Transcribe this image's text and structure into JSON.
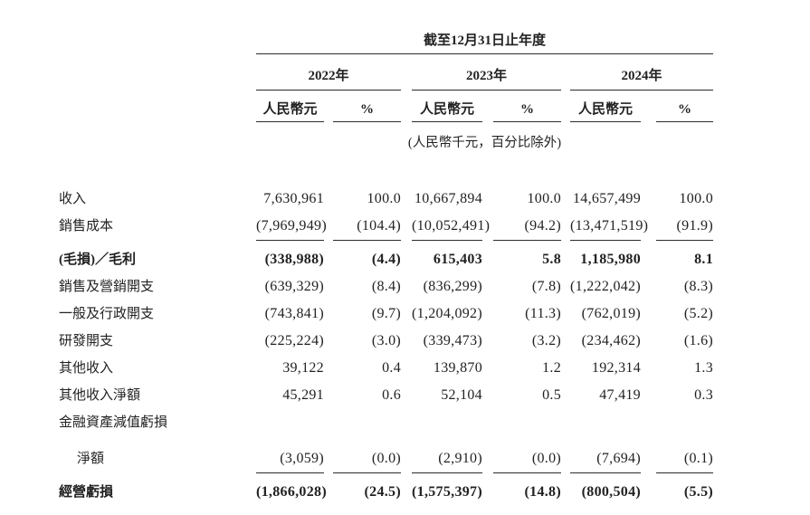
{
  "page": {
    "background_color": "#ffffff",
    "text_color": "#222222",
    "rule_color": "#2b2b2b"
  },
  "table": {
    "title": "截至12月31日止年度",
    "unit_note": "(人民幣千元，百分比除外)",
    "year_groups": [
      {
        "year": "2022年",
        "columns": [
          "人民幣元",
          "%"
        ]
      },
      {
        "year": "2023年",
        "columns": [
          "人民幣元",
          "%"
        ]
      },
      {
        "year": "2024年",
        "columns": [
          "人民幣元",
          "%"
        ]
      }
    ],
    "rows": [
      {
        "label": "收入",
        "bold": false,
        "indent": false,
        "rule_below": false,
        "values": [
          "7,630,961",
          "100.0",
          "10,667,894",
          "100.0",
          "14,657,499",
          "100.0"
        ]
      },
      {
        "label": "銷售成本",
        "bold": false,
        "indent": false,
        "rule_below": true,
        "values": [
          "(7,969,949)",
          "(104.4)",
          "(10,052,491)",
          "(94.2)",
          "(13,471,519)",
          "(91.9)"
        ]
      },
      {
        "label": "(毛損)／毛利",
        "bold": true,
        "indent": false,
        "rule_below": false,
        "values": [
          "(338,988)",
          "(4.4)",
          "615,403",
          "5.8",
          "1,185,980",
          "8.1"
        ]
      },
      {
        "label": "銷售及營銷開支",
        "bold": false,
        "indent": false,
        "rule_below": false,
        "values": [
          "(639,329)",
          "(8.4)",
          "(836,299)",
          "(7.8)",
          "(1,222,042)",
          "(8.3)"
        ]
      },
      {
        "label": "一般及行政開支",
        "bold": false,
        "indent": false,
        "rule_below": false,
        "values": [
          "(743,841)",
          "(9.7)",
          "(1,204,092)",
          "(11.3)",
          "(762,019)",
          "(5.2)"
        ]
      },
      {
        "label": "研發開支",
        "bold": false,
        "indent": false,
        "rule_below": false,
        "values": [
          "(225,224)",
          "(3.0)",
          "(339,473)",
          "(3.2)",
          "(234,462)",
          "(1.6)"
        ]
      },
      {
        "label": "其他收入",
        "bold": false,
        "indent": false,
        "rule_below": false,
        "values": [
          "39,122",
          "0.4",
          "139,870",
          "1.2",
          "192,314",
          "1.3"
        ]
      },
      {
        "label": "其他收入淨額",
        "bold": false,
        "indent": false,
        "rule_below": false,
        "values": [
          "45,291",
          "0.6",
          "52,104",
          "0.5",
          "47,419",
          "0.3"
        ]
      },
      {
        "label": "金融資產減值虧損",
        "bold": false,
        "indent": false,
        "rule_below": false,
        "values": [
          "",
          "",
          "",
          "",
          "",
          ""
        ]
      },
      {
        "label": "淨額",
        "bold": false,
        "indent": true,
        "rule_below": true,
        "values": [
          "(3,059)",
          "(0.0)",
          "(2,910)",
          "(0.0)",
          "(7,694)",
          "(0.1)"
        ]
      },
      {
        "label": "經營虧損",
        "bold": true,
        "indent": false,
        "rule_below": false,
        "values": [
          "(1,866,028)",
          "(24.5)",
          "(1,575,397)",
          "(14.8)",
          "(800,504)",
          "(5.5)"
        ]
      }
    ]
  }
}
